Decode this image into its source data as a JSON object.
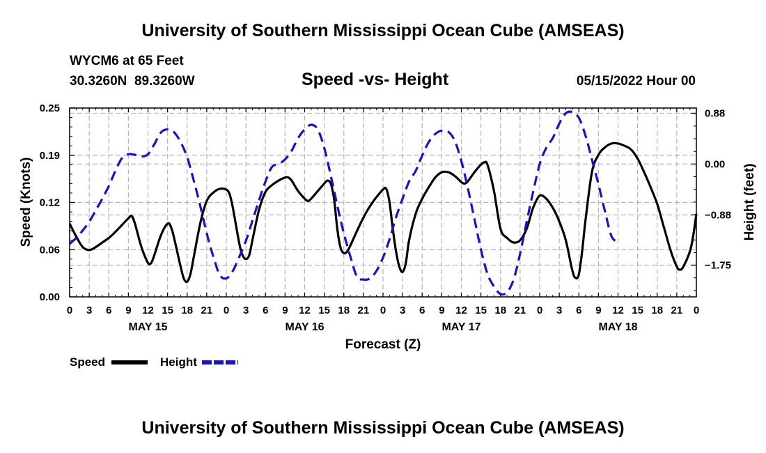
{
  "header": {
    "title": "University of Southern Mississippi Ocean Cube (AMSEAS)",
    "station": "WYCM6 at 65 Feet",
    "coords": "30.3260N  89.3260W",
    "subtitle": "Speed -vs- Height",
    "date": "05/15/2022 Hour 00"
  },
  "footer": {
    "title": "University of Southern Mississippi Ocean Cube (AMSEAS)"
  },
  "legend": {
    "speed_label": "Speed",
    "height_label": "Height"
  },
  "colors": {
    "speed": "#000000",
    "height": "#1414c8",
    "grid": "#b4b4b4"
  },
  "chart_data": {
    "type": "line",
    "title": "Speed -vs- Height",
    "xlabel": "Forecast (Z)",
    "ylabel_left": "Speed (Knots)",
    "ylabel_right": "Height (feet)",
    "xlim": [
      0,
      96
    ],
    "ylim_left": [
      0,
      0.25
    ],
    "ylim_right": [
      -2.3,
      0.97
    ],
    "left_ticks": [
      {
        "value": 0,
        "label": "0.00"
      },
      {
        "value": 0.0625,
        "label": "0.06"
      },
      {
        "value": 0.125,
        "label": "0.12"
      },
      {
        "value": 0.1875,
        "label": "0.19"
      },
      {
        "value": 0.25,
        "label": "0.25"
      }
    ],
    "right_ticks": [
      {
        "value": 0.88,
        "label": "0.88"
      },
      {
        "value": 0.0,
        "label": "0.00"
      },
      {
        "value": -0.88,
        "label": "−0.88"
      },
      {
        "value": -1.75,
        "label": "−1.75"
      }
    ],
    "x_ticks": [
      {
        "hour": 0,
        "label": "0"
      },
      {
        "hour": 3,
        "label": "3"
      },
      {
        "hour": 6,
        "label": "6"
      },
      {
        "hour": 9,
        "label": "9"
      },
      {
        "hour": 12,
        "label": "12"
      },
      {
        "hour": 15,
        "label": "15"
      },
      {
        "hour": 18,
        "label": "18"
      },
      {
        "hour": 21,
        "label": "21"
      },
      {
        "hour": 24,
        "label": "0"
      },
      {
        "hour": 27,
        "label": "3"
      },
      {
        "hour": 30,
        "label": "6"
      },
      {
        "hour": 33,
        "label": "9"
      },
      {
        "hour": 36,
        "label": "12"
      },
      {
        "hour": 39,
        "label": "15"
      },
      {
        "hour": 42,
        "label": "18"
      },
      {
        "hour": 45,
        "label": "21"
      },
      {
        "hour": 48,
        "label": "0"
      },
      {
        "hour": 51,
        "label": "3"
      },
      {
        "hour": 54,
        "label": "6"
      },
      {
        "hour": 57,
        "label": "9"
      },
      {
        "hour": 60,
        "label": "12"
      },
      {
        "hour": 63,
        "label": "15"
      },
      {
        "hour": 66,
        "label": "18"
      },
      {
        "hour": 69,
        "label": "21"
      },
      {
        "hour": 72,
        "label": "0"
      },
      {
        "hour": 75,
        "label": "3"
      },
      {
        "hour": 78,
        "label": "6"
      },
      {
        "hour": 81,
        "label": "9"
      },
      {
        "hour": 84,
        "label": "12"
      },
      {
        "hour": 87,
        "label": "15"
      },
      {
        "hour": 90,
        "label": "18"
      },
      {
        "hour": 93,
        "label": "21"
      },
      {
        "hour": 96,
        "label": "0"
      }
    ],
    "day_labels": [
      {
        "hour": 12,
        "label": "MAY 15"
      },
      {
        "hour": 36,
        "label": "MAY 16"
      },
      {
        "hour": 60,
        "label": "MAY 17"
      },
      {
        "hour": 84,
        "label": "MAY 18"
      }
    ],
    "series": [
      {
        "name": "Speed",
        "axis": "left",
        "style": "solid",
        "points": [
          [
            0,
            0.097
          ],
          [
            1,
            0.08
          ],
          [
            2,
            0.066
          ],
          [
            3,
            0.062
          ],
          [
            4,
            0.066
          ],
          [
            5,
            0.072
          ],
          [
            6,
            0.078
          ],
          [
            7,
            0.086
          ],
          [
            8,
            0.095
          ],
          [
            9,
            0.104
          ],
          [
            9.5,
            0.107
          ],
          [
            10,
            0.097
          ],
          [
            11,
            0.066
          ],
          [
            12,
            0.045
          ],
          [
            12.5,
            0.045
          ],
          [
            13,
            0.056
          ],
          [
            14,
            0.082
          ],
          [
            15,
            0.097
          ],
          [
            15.5,
            0.093
          ],
          [
            16,
            0.078
          ],
          [
            17,
            0.04
          ],
          [
            17.5,
            0.024
          ],
          [
            18,
            0.02
          ],
          [
            18.5,
            0.03
          ],
          [
            19,
            0.052
          ],
          [
            20,
            0.097
          ],
          [
            21,
            0.127
          ],
          [
            22,
            0.138
          ],
          [
            23,
            0.143
          ],
          [
            24,
            0.142
          ],
          [
            24.5,
            0.136
          ],
          [
            25,
            0.118
          ],
          [
            26,
            0.07
          ],
          [
            26.5,
            0.055
          ],
          [
            27,
            0.05
          ],
          [
            27.5,
            0.055
          ],
          [
            28,
            0.075
          ],
          [
            29,
            0.115
          ],
          [
            30,
            0.139
          ],
          [
            31,
            0.148
          ],
          [
            32,
            0.154
          ],
          [
            33,
            0.158
          ],
          [
            33.5,
            0.158
          ],
          [
            34,
            0.154
          ],
          [
            35,
            0.14
          ],
          [
            36,
            0.13
          ],
          [
            36.5,
            0.127
          ],
          [
            37,
            0.13
          ],
          [
            38,
            0.14
          ],
          [
            39,
            0.15
          ],
          [
            39.5,
            0.154
          ],
          [
            40,
            0.15
          ],
          [
            40.5,
            0.13
          ],
          [
            41,
            0.09
          ],
          [
            41.5,
            0.065
          ],
          [
            42,
            0.058
          ],
          [
            42.5,
            0.06
          ],
          [
            43,
            0.068
          ],
          [
            44,
            0.087
          ],
          [
            45,
            0.105
          ],
          [
            46,
            0.12
          ],
          [
            47,
            0.132
          ],
          [
            48,
            0.142
          ],
          [
            48.5,
            0.143
          ],
          [
            49,
            0.125
          ],
          [
            49.5,
            0.09
          ],
          [
            50,
            0.06
          ],
          [
            50.5,
            0.04
          ],
          [
            51,
            0.033
          ],
          [
            51.5,
            0.045
          ],
          [
            52,
            0.075
          ],
          [
            53,
            0.11
          ],
          [
            54,
            0.13
          ],
          [
            55,
            0.145
          ],
          [
            56,
            0.158
          ],
          [
            57,
            0.165
          ],
          [
            58,
            0.165
          ],
          [
            59,
            0.16
          ],
          [
            60,
            0.152
          ],
          [
            60.5,
            0.15
          ],
          [
            61,
            0.153
          ],
          [
            62,
            0.165
          ],
          [
            63,
            0.175
          ],
          [
            63.5,
            0.178
          ],
          [
            64,
            0.175
          ],
          [
            65,
            0.14
          ],
          [
            66,
            0.09
          ],
          [
            67,
            0.078
          ],
          [
            68,
            0.072
          ],
          [
            69,
            0.075
          ],
          [
            70,
            0.09
          ],
          [
            71,
            0.118
          ],
          [
            72,
            0.134
          ],
          [
            73,
            0.13
          ],
          [
            74,
            0.118
          ],
          [
            75,
            0.1
          ],
          [
            76,
            0.075
          ],
          [
            77,
            0.035
          ],
          [
            77.5,
            0.025
          ],
          [
            78,
            0.03
          ],
          [
            78.5,
            0.06
          ],
          [
            79,
            0.1
          ],
          [
            80,
            0.165
          ],
          [
            81,
            0.188
          ],
          [
            82,
            0.198
          ],
          [
            83,
            0.203
          ],
          [
            84,
            0.203
          ],
          [
            85,
            0.2
          ],
          [
            86,
            0.195
          ],
          [
            87,
            0.183
          ],
          [
            88,
            0.165
          ],
          [
            89,
            0.145
          ],
          [
            90,
            0.123
          ],
          [
            91,
            0.093
          ],
          [
            92,
            0.063
          ],
          [
            93,
            0.04
          ],
          [
            93.5,
            0.036
          ],
          [
            94,
            0.04
          ],
          [
            95,
            0.06
          ],
          [
            95.5,
            0.08
          ],
          [
            96,
            0.11
          ]
        ]
      },
      {
        "name": "Height",
        "axis": "right",
        "style": "dashed",
        "points": [
          [
            0,
            -1.38
          ],
          [
            1,
            -1.28
          ],
          [
            2,
            -1.15
          ],
          [
            3,
            -1.0
          ],
          [
            4,
            -0.8
          ],
          [
            5,
            -0.6
          ],
          [
            6,
            -0.38
          ],
          [
            7,
            -0.12
          ],
          [
            8,
            0.1
          ],
          [
            9,
            0.17
          ],
          [
            10,
            0.16
          ],
          [
            11,
            0.13
          ],
          [
            12,
            0.17
          ],
          [
            13,
            0.35
          ],
          [
            14,
            0.55
          ],
          [
            15,
            0.6
          ],
          [
            16,
            0.55
          ],
          [
            17,
            0.38
          ],
          [
            18,
            0.12
          ],
          [
            19,
            -0.28
          ],
          [
            20,
            -0.72
          ],
          [
            21,
            -1.2
          ],
          [
            22,
            -1.6
          ],
          [
            23,
            -1.92
          ],
          [
            24,
            -1.98
          ],
          [
            25,
            -1.85
          ],
          [
            26,
            -1.6
          ],
          [
            27,
            -1.33
          ],
          [
            28,
            -0.98
          ],
          [
            29,
            -0.63
          ],
          [
            30,
            -0.3
          ],
          [
            31,
            -0.05
          ],
          [
            32,
            0.0
          ],
          [
            33,
            0.08
          ],
          [
            34,
            0.23
          ],
          [
            35,
            0.45
          ],
          [
            36,
            0.6
          ],
          [
            37,
            0.68
          ],
          [
            38,
            0.6
          ],
          [
            39,
            0.28
          ],
          [
            40,
            -0.2
          ],
          [
            41,
            -0.72
          ],
          [
            42,
            -1.2
          ],
          [
            43,
            -1.6
          ],
          [
            44,
            -1.95
          ],
          [
            45,
            -2.0
          ],
          [
            46,
            -1.98
          ],
          [
            47,
            -1.85
          ],
          [
            48,
            -1.62
          ],
          [
            49,
            -1.3
          ],
          [
            50,
            -0.92
          ],
          [
            51,
            -0.6
          ],
          [
            52,
            -0.3
          ],
          [
            53,
            -0.12
          ],
          [
            54,
            0.15
          ],
          [
            55,
            0.38
          ],
          [
            56,
            0.52
          ],
          [
            57,
            0.58
          ],
          [
            58,
            0.56
          ],
          [
            59,
            0.4
          ],
          [
            60,
            0.05
          ],
          [
            61,
            -0.42
          ],
          [
            62,
            -0.95
          ],
          [
            63,
            -1.48
          ],
          [
            64,
            -1.9
          ],
          [
            65,
            -2.12
          ],
          [
            66,
            -2.25
          ],
          [
            67,
            -2.22
          ],
          [
            68,
            -2.0
          ],
          [
            69,
            -1.55
          ],
          [
            70,
            -1.0
          ],
          [
            71,
            -0.48
          ],
          [
            72,
            0.0
          ],
          [
            73,
            0.28
          ],
          [
            74,
            0.45
          ],
          [
            75,
            0.7
          ],
          [
            76,
            0.88
          ],
          [
            77,
            0.9
          ],
          [
            78,
            0.8
          ],
          [
            79,
            0.5
          ],
          [
            80,
            0.08
          ],
          [
            81,
            -0.35
          ],
          [
            82,
            -0.82
          ],
          [
            83,
            -1.25
          ],
          [
            84,
            -1.35
          ]
        ]
      }
    ]
  }
}
